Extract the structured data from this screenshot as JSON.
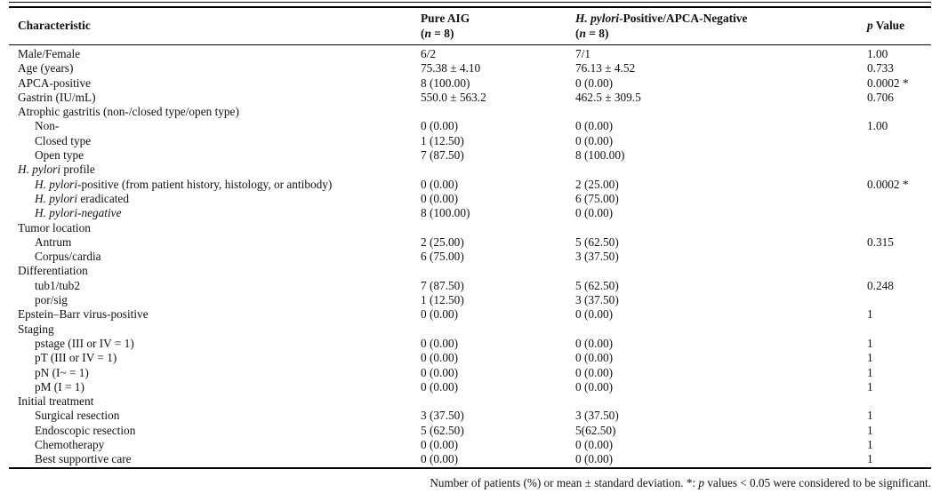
{
  "table": {
    "header": {
      "characteristic": [
        {
          "t": "Characteristic"
        }
      ],
      "col2_line1": [
        {
          "t": "Pure AIG"
        }
      ],
      "col2_line2": [
        {
          "t": "("
        },
        {
          "t": "n",
          "i": 1
        },
        {
          "t": " = 8)"
        }
      ],
      "col3_line1": [
        {
          "t": "H. pylori",
          "i": 1
        },
        {
          "t": "-Positive/APCA-Negative"
        }
      ],
      "col3_line2": [
        {
          "t": "("
        },
        {
          "t": "n",
          "i": 1
        },
        {
          "t": " = 8)"
        }
      ],
      "p_value": [
        {
          "t": "p",
          "i": 1
        },
        {
          "t": " Value"
        }
      ]
    },
    "rows": [
      {
        "label": [
          {
            "t": "Male/Female"
          }
        ],
        "indent": 0,
        "c1": "6/2",
        "c2": "7/1",
        "p": "1.00"
      },
      {
        "label": [
          {
            "t": "Age (years)"
          }
        ],
        "indent": 0,
        "c1": "75.38 ± 4.10",
        "c2": "76.13 ± 4.52",
        "p": "0.733"
      },
      {
        "label": [
          {
            "t": "APCA-positive"
          }
        ],
        "indent": 0,
        "c1": "8 (100.00)",
        "c2": "0 (0.00)",
        "p": "0.0002 *"
      },
      {
        "label": [
          {
            "t": "Gastrin (IU/mL)"
          }
        ],
        "indent": 0,
        "c1": "550.0 ± 563.2",
        "c2": "462.5 ± 309.5",
        "p": "0.706"
      },
      {
        "label": [
          {
            "t": "Atrophic gastritis (non-/closed type/open type)"
          }
        ],
        "indent": 0,
        "c1": "",
        "c2": "",
        "p": ""
      },
      {
        "label": [
          {
            "t": "Non-"
          }
        ],
        "indent": 1,
        "c1": "0 (0.00)",
        "c2": "0 (0.00)",
        "p": "1.00"
      },
      {
        "label": [
          {
            "t": "Closed type"
          }
        ],
        "indent": 1,
        "c1": "1 (12.50)",
        "c2": "0 (0.00)",
        "p": ""
      },
      {
        "label": [
          {
            "t": "Open type"
          }
        ],
        "indent": 1,
        "c1": "7 (87.50)",
        "c2": "8 (100.00)",
        "p": ""
      },
      {
        "label": [
          {
            "t": "H. pylori",
            "i": 1
          },
          {
            "t": " profile"
          }
        ],
        "indent": 0,
        "c1": "",
        "c2": "",
        "p": ""
      },
      {
        "label": [
          {
            "t": "H. pylori",
            "i": 1
          },
          {
            "t": "-positive (from patient history, histology, or antibody)"
          }
        ],
        "indent": 1,
        "c1": "0 (0.00)",
        "c2": "2 (25.00)",
        "p": "0.0002 *"
      },
      {
        "label": [
          {
            "t": "H. pylori",
            "i": 1
          },
          {
            "t": " eradicated"
          }
        ],
        "indent": 1,
        "c1": "0 (0.00)",
        "c2": "6 (75.00)",
        "p": ""
      },
      {
        "label": [
          {
            "t": "H. pylori-negative",
            "i": 1
          }
        ],
        "indent": 1,
        "c1": "8 (100.00)",
        "c2": "0 (0.00)",
        "p": ""
      },
      {
        "label": [
          {
            "t": "Tumor location"
          }
        ],
        "indent": 0,
        "c1": "",
        "c2": "",
        "p": ""
      },
      {
        "label": [
          {
            "t": "Antrum"
          }
        ],
        "indent": 1,
        "c1": "2 (25.00)",
        "c2": "5 (62.50)",
        "p": "0.315"
      },
      {
        "label": [
          {
            "t": "Corpus/cardia"
          }
        ],
        "indent": 1,
        "c1": "6 (75.00)",
        "c2": "3 (37.50)",
        "p": ""
      },
      {
        "label": [
          {
            "t": "Differentiation"
          }
        ],
        "indent": 0,
        "c1": "",
        "c2": "",
        "p": ""
      },
      {
        "label": [
          {
            "t": "tub1/tub2"
          }
        ],
        "indent": 1,
        "c1": "7 (87.50)",
        "c2": "5 (62.50)",
        "p": "0.248"
      },
      {
        "label": [
          {
            "t": "por/sig"
          }
        ],
        "indent": 1,
        "c1": "1 (12.50)",
        "c2": "3 (37.50)",
        "p": ""
      },
      {
        "label": [
          {
            "t": "Epstein–Barr virus-positive"
          }
        ],
        "indent": 0,
        "c1": "0 (0.00)",
        "c2": "0 (0.00)",
        "p": "1"
      },
      {
        "label": [
          {
            "t": "Staging"
          }
        ],
        "indent": 0,
        "c1": "",
        "c2": "",
        "p": ""
      },
      {
        "label": [
          {
            "t": "pstage (III or IV = 1)"
          }
        ],
        "indent": 1,
        "c1": "0 (0.00)",
        "c2": "0 (0.00)",
        "p": "1"
      },
      {
        "label": [
          {
            "t": "pT (III or IV = 1)"
          }
        ],
        "indent": 1,
        "c1": "0 (0.00)",
        "c2": "0 (0.00)",
        "p": "1"
      },
      {
        "label": [
          {
            "t": "pN (I~ = 1)"
          }
        ],
        "indent": 1,
        "c1": "0 (0.00)",
        "c2": "0 (0.00)",
        "p": "1"
      },
      {
        "label": [
          {
            "t": "pM (I = 1)"
          }
        ],
        "indent": 1,
        "c1": "0 (0.00)",
        "c2": "0 (0.00)",
        "p": "1"
      },
      {
        "label": [
          {
            "t": "Initial treatment"
          }
        ],
        "indent": 0,
        "c1": "",
        "c2": "",
        "p": ""
      },
      {
        "label": [
          {
            "t": "Surgical resection"
          }
        ],
        "indent": 1,
        "c1": "3 (37.50)",
        "c2": "3 (37.50)",
        "p": "1"
      },
      {
        "label": [
          {
            "t": "Endoscopic resection"
          }
        ],
        "indent": 1,
        "c1": "5 (62.50)",
        "c2": "5(62.50)",
        "p": "1"
      },
      {
        "label": [
          {
            "t": "Chemotherapy"
          }
        ],
        "indent": 1,
        "c1": "0 (0.00)",
        "c2": "0 (0.00)",
        "p": "1"
      },
      {
        "label": [
          {
            "t": "Best supportive care"
          }
        ],
        "indent": 1,
        "c1": "0 (0.00)",
        "c2": "0 (0.00)",
        "p": "1"
      }
    ]
  },
  "footnote": [
    {
      "t": "Number of patients (%) or mean ± standard deviation. *: "
    },
    {
      "t": "p",
      "i": 1
    },
    {
      "t": " values < 0.05 were considered to be significant."
    }
  ],
  "colors": {
    "text": "#111111",
    "rule": "#000000",
    "background": "#ffffff"
  }
}
